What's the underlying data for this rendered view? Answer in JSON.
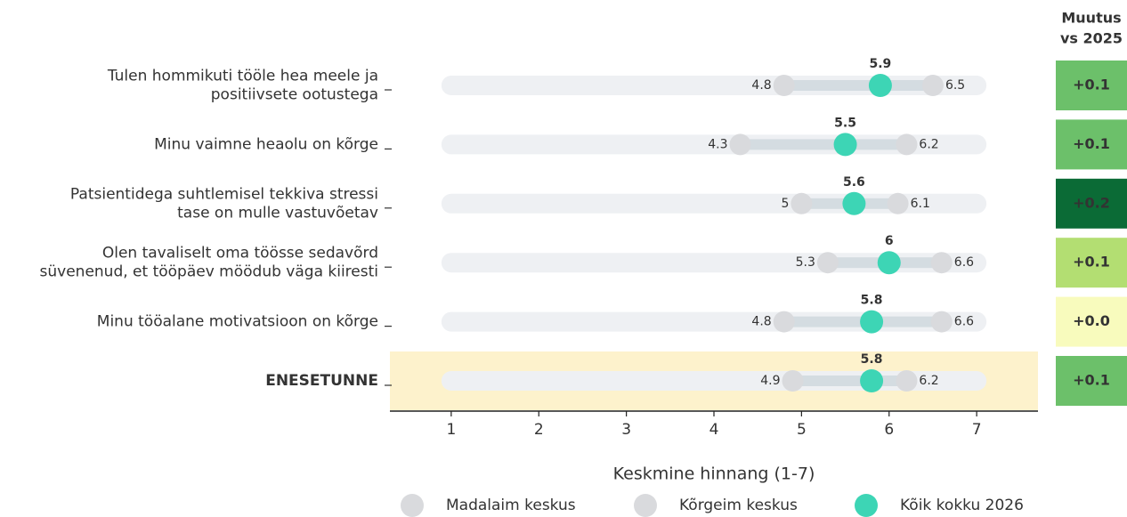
{
  "chart_data": {
    "type": "dot_range",
    "categories": [
      [
        "Tulen hommikuti tööle hea meele ja",
        "positiivsete ootustega"
      ],
      [
        "Minu vaimne heaolu on kõrge"
      ],
      [
        "Patsientidega suhtlemisel tekkiva stressi",
        "tase on mulle vastuvõetav"
      ],
      [
        "Olen tavaliselt oma töösse sedavõrd",
        "süvenenud, et tööpäev möödub väga kiiresti"
      ],
      [
        "Minu tööalane motivatsioon on kõrge"
      ],
      [
        "ENESETUNNE"
      ]
    ],
    "highlight_index": 5,
    "series": [
      {
        "name": "Madalaim keskus",
        "color": "#d9dadd",
        "values": [
          4.8,
          4.3,
          5.0,
          5.3,
          4.8,
          4.9
        ]
      },
      {
        "name": "Kõrgeim keskus",
        "color": "#d9dadd",
        "values": [
          6.5,
          6.2,
          6.1,
          6.6,
          6.6,
          6.2
        ]
      },
      {
        "name": "Kõik kokku 2026",
        "color": "#3dd5b5",
        "values": [
          5.9,
          5.5,
          5.6,
          6.0,
          5.8,
          5.8
        ]
      }
    ],
    "xlabel": "Keskmine hinnang (1-7)",
    "xlim": [
      0.3,
      7.7
    ],
    "xticks": [
      1,
      2,
      3,
      4,
      5,
      6,
      7
    ],
    "change": {
      "title": [
        "Muutus",
        "vs 2025"
      ],
      "values": [
        0.1,
        0.1,
        0.2,
        0.1,
        0.0,
        0.1
      ],
      "value_labels": [
        "+0.1",
        "+0.1",
        "+0.2",
        "+0.1",
        "+0.0",
        "+0.1"
      ],
      "colors": [
        "#6cc06a",
        "#6cc06a",
        "#0b6b36",
        "#b3de72",
        "#f8fbbd",
        "#6cc06a"
      ]
    }
  }
}
